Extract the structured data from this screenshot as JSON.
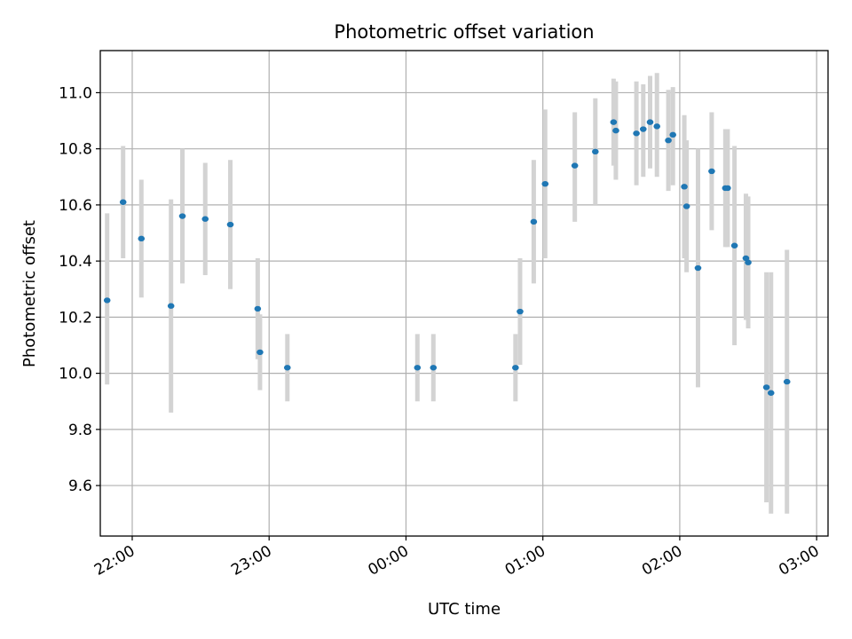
{
  "chart_data": {
    "type": "scatter",
    "title": "Photometric offset variation",
    "xlabel": "UTC time",
    "ylabel": "Photometric offset",
    "xlim": [
      "21:46",
      "03:05"
    ],
    "ylim": [
      9.42,
      11.15
    ],
    "grid": true,
    "x_ticks": [
      "22:00",
      "23:00",
      "00:00",
      "01:00",
      "02:00",
      "03:00"
    ],
    "y_ticks": [
      "9.6",
      "9.8",
      "10.0",
      "10.2",
      "10.4",
      "10.6",
      "10.8",
      "11.0"
    ],
    "colors": {
      "point": "#1f77b4",
      "errorbar": "#d3d3d3"
    },
    "points": [
      {
        "t": "21:49",
        "y": 10.26,
        "ylo": 9.96,
        "yhi": 10.57
      },
      {
        "t": "21:56",
        "y": 10.61,
        "ylo": 10.41,
        "yhi": 10.81
      },
      {
        "t": "22:04",
        "y": 10.48,
        "ylo": 10.27,
        "yhi": 10.69
      },
      {
        "t": "22:17",
        "y": 10.24,
        "ylo": 9.86,
        "yhi": 10.62
      },
      {
        "t": "22:22",
        "y": 10.56,
        "ylo": 10.32,
        "yhi": 10.8
      },
      {
        "t": "22:32",
        "y": 10.55,
        "ylo": 10.35,
        "yhi": 10.75
      },
      {
        "t": "22:43",
        "y": 10.53,
        "ylo": 10.3,
        "yhi": 10.76
      },
      {
        "t": "22:55",
        "y": 10.23,
        "ylo": 10.05,
        "yhi": 10.41
      },
      {
        "t": "22:56",
        "y": 10.075,
        "ylo": 9.94,
        "yhi": 10.21
      },
      {
        "t": "23:08",
        "y": 10.02,
        "ylo": 9.9,
        "yhi": 10.14
      },
      {
        "t": "00:05",
        "y": 10.02,
        "ylo": 9.9,
        "yhi": 10.14
      },
      {
        "t": "00:12",
        "y": 10.02,
        "ylo": 9.9,
        "yhi": 10.14
      },
      {
        "t": "00:48",
        "y": 10.02,
        "ylo": 9.9,
        "yhi": 10.14
      },
      {
        "t": "00:50",
        "y": 10.22,
        "ylo": 10.03,
        "yhi": 10.41
      },
      {
        "t": "00:56",
        "y": 10.54,
        "ylo": 10.32,
        "yhi": 10.76
      },
      {
        "t": "01:01",
        "y": 10.675,
        "ylo": 10.41,
        "yhi": 10.94
      },
      {
        "t": "01:14",
        "y": 10.74,
        "ylo": 10.54,
        "yhi": 10.93
      },
      {
        "t": "01:23",
        "y": 10.79,
        "ylo": 10.6,
        "yhi": 10.98
      },
      {
        "t": "01:31",
        "y": 10.895,
        "ylo": 10.74,
        "yhi": 11.05
      },
      {
        "t": "01:32",
        "y": 10.865,
        "ylo": 10.69,
        "yhi": 11.04
      },
      {
        "t": "01:41",
        "y": 10.855,
        "ylo": 10.67,
        "yhi": 11.04
      },
      {
        "t": "01:44",
        "y": 10.87,
        "ylo": 10.7,
        "yhi": 11.03
      },
      {
        "t": "01:47",
        "y": 10.895,
        "ylo": 10.73,
        "yhi": 11.06
      },
      {
        "t": "01:50",
        "y": 10.88,
        "ylo": 10.7,
        "yhi": 11.07
      },
      {
        "t": "01:55",
        "y": 10.83,
        "ylo": 10.65,
        "yhi": 11.01
      },
      {
        "t": "01:57",
        "y": 10.85,
        "ylo": 10.67,
        "yhi": 11.02
      },
      {
        "t": "02:02",
        "y": 10.665,
        "ylo": 10.41,
        "yhi": 10.92
      },
      {
        "t": "02:03",
        "y": 10.595,
        "ylo": 10.36,
        "yhi": 10.83
      },
      {
        "t": "02:08",
        "y": 10.375,
        "ylo": 9.95,
        "yhi": 10.8
      },
      {
        "t": "02:14",
        "y": 10.72,
        "ylo": 10.51,
        "yhi": 10.93
      },
      {
        "t": "02:20",
        "y": 10.66,
        "ylo": 10.45,
        "yhi": 10.87
      },
      {
        "t": "02:21",
        "y": 10.66,
        "ylo": 10.45,
        "yhi": 10.87
      },
      {
        "t": "02:24",
        "y": 10.455,
        "ylo": 10.1,
        "yhi": 10.81
      },
      {
        "t": "02:29",
        "y": 10.41,
        "ylo": 10.19,
        "yhi": 10.64
      },
      {
        "t": "02:30",
        "y": 10.395,
        "ylo": 10.16,
        "yhi": 10.63
      },
      {
        "t": "02:38",
        "y": 9.95,
        "ylo": 9.54,
        "yhi": 10.36
      },
      {
        "t": "02:40",
        "y": 9.93,
        "ylo": 9.5,
        "yhi": 10.36
      },
      {
        "t": "02:47",
        "y": 9.97,
        "ylo": 9.5,
        "yhi": 10.44
      }
    ]
  }
}
